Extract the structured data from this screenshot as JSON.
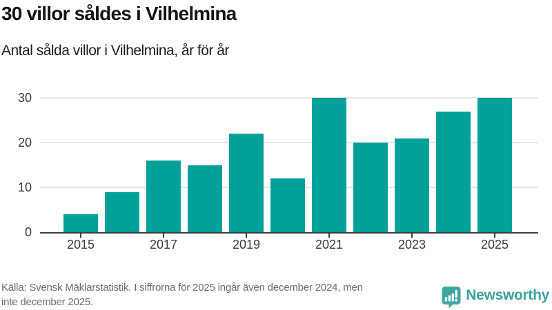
{
  "header": {
    "title": "30 villor såldes i Vilhelmina",
    "subtitle": "Antal sålda villor i Vilhelmina, år för år"
  },
  "chart_data": {
    "type": "bar",
    "categories": [
      "2015",
      "2016",
      "2017",
      "2018",
      "2019",
      "2020",
      "2021",
      "2022",
      "2023",
      "2024",
      "2025"
    ],
    "values": [
      4,
      9,
      16,
      15,
      22,
      12,
      30,
      20,
      21,
      27,
      30
    ],
    "title": "30 villor såldes i Vilhelmina",
    "subtitle": "Antal sålda villor i Vilhelmina, år för år",
    "xlabel": "",
    "ylabel": "",
    "ylim": [
      0,
      30
    ],
    "yticks": [
      0,
      10,
      20,
      30
    ],
    "xtick_labels": [
      "2015",
      "2017",
      "2019",
      "2021",
      "2023",
      "2025"
    ],
    "bar_color": "#03A099",
    "gridline_color": "#e5e5e5",
    "axis_color": "#3d3d3d",
    "grid": "horizontal-on",
    "legend": "none"
  },
  "footer": {
    "source_lines": [
      "Källa: Svensk Mäklarstatistik. I siffrorna för 2025 ingår även december 2024, men",
      "inte december 2025."
    ],
    "logo_text": "Newsworthy",
    "logo_color": "#3BA29C",
    "logo_icon": "newsworthy-speech-bubble-bar-chart-icon"
  }
}
